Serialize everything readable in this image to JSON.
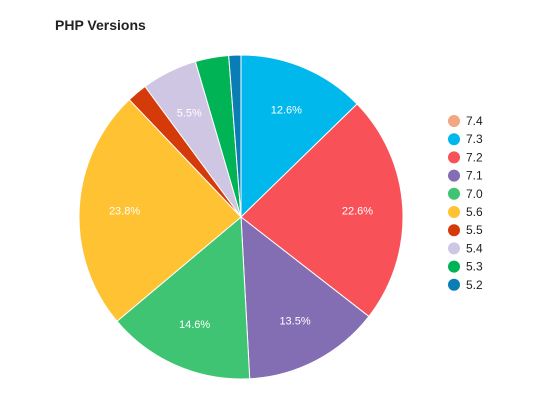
{
  "chart_data": {
    "type": "pie",
    "title": "PHP Versions",
    "legend_position": "right",
    "slices": [
      {
        "label": "7.4",
        "value": 0.0,
        "display": "",
        "color": "#f4a582"
      },
      {
        "label": "7.3",
        "value": 12.6,
        "display": "12.6%",
        "color": "#00b8ec"
      },
      {
        "label": "7.2",
        "value": 22.6,
        "display": "22.6%",
        "color": "#f85158"
      },
      {
        "label": "7.1",
        "value": 13.5,
        "display": "13.5%",
        "color": "#836db3"
      },
      {
        "label": "7.0",
        "value": 14.6,
        "display": "14.6%",
        "color": "#3ec472"
      },
      {
        "label": "5.6",
        "value": 23.8,
        "display": "23.8%",
        "color": "#fec232"
      },
      {
        "label": "5.5",
        "value": 2.0,
        "display": "",
        "color": "#d53a0a"
      },
      {
        "label": "5.4",
        "value": 5.5,
        "display": "5.5%",
        "color": "#cfc6e3"
      },
      {
        "label": "5.3",
        "value": 3.3,
        "display": "",
        "color": "#00b455"
      },
      {
        "label": "5.2",
        "value": 1.2,
        "display": "",
        "color": "#0a7db5"
      }
    ]
  }
}
